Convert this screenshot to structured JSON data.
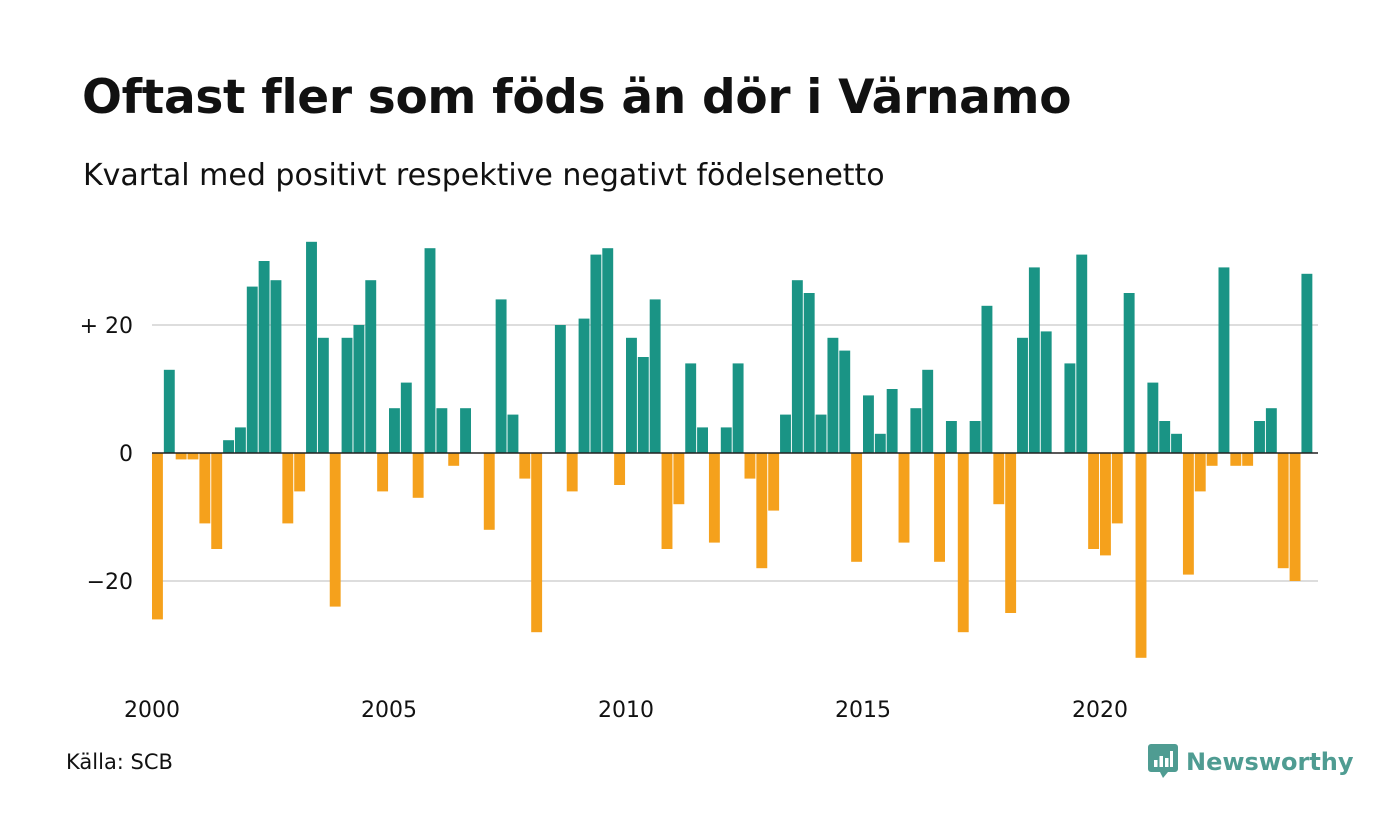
{
  "header": {
    "title": "Oftast fler som föds än dör i Värnamo",
    "subtitle": "Kvartal med positivt respektive negativt födelsenetto"
  },
  "footer": {
    "source": "Källa: SCB",
    "brand": "Newsworthy",
    "brand_icon": "bar-chart-speech-bubble-icon"
  },
  "colors": {
    "positive": "#1a9485",
    "negative": "#f5a11c",
    "grid": "#dddddd",
    "brand": "#4f9c92"
  },
  "chart_data": {
    "type": "bar",
    "title": "Oftast fler som föds än dör i Värnamo",
    "subtitle": "Kvartal med positivt respektive negativt födelsenetto",
    "xlabel": "",
    "ylabel": "",
    "ylim": [
      -35,
      33
    ],
    "grid": true,
    "legend": "none",
    "y_ticks": [
      {
        "value": 20,
        "label": "+ 20"
      },
      {
        "value": 0,
        "label": "0"
      },
      {
        "value": -20,
        "label": "−20"
      }
    ],
    "x_ticks": [
      "2000",
      "2005",
      "2010",
      "2015",
      "2020"
    ],
    "x_tick_year_values": [
      2000,
      2005,
      2010,
      2015,
      2020
    ],
    "start_year": 2000,
    "values": [
      -26,
      13,
      -1,
      -1,
      -11,
      -15,
      2,
      4,
      26,
      30,
      27,
      -11,
      -6,
      33,
      18,
      -24,
      18,
      20,
      27,
      -6,
      7,
      11,
      -7,
      32,
      7,
      -2,
      7,
      0,
      -12,
      24,
      6,
      -4,
      -28,
      0,
      20,
      -6,
      21,
      31,
      32,
      -5,
      18,
      15,
      24,
      -15,
      -8,
      14,
      4,
      -14,
      4,
      14,
      -4,
      -18,
      -9,
      6,
      27,
      25,
      6,
      18,
      16,
      -17,
      9,
      3,
      10,
      -14,
      7,
      13,
      -17,
      5,
      -28,
      5,
      23,
      -8,
      -25,
      18,
      29,
      19,
      0,
      14,
      31,
      -15,
      -16,
      -11,
      25,
      -32,
      11,
      5,
      3,
      -19,
      -6,
      -2,
      29,
      -2,
      -2,
      5,
      7,
      -18,
      -20,
      28
    ]
  }
}
